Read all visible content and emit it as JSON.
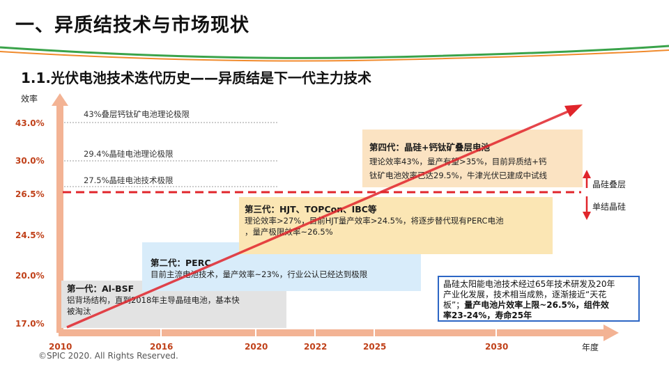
{
  "header": {
    "title": "一、异质结技术与市场现状",
    "subtitle": "1.1.光伏电池技术迭代历史——异质结是下一代主力技术"
  },
  "chart_data": {
    "type": "line",
    "ylabel": "效率",
    "xlabel": "年度",
    "x_ticks": [
      "2010",
      "2016",
      "2020",
      "2022",
      "2025",
      "2030"
    ],
    "y_ticks": [
      "43.0%",
      "30.0%",
      "26.5%",
      "24.5%",
      "20.0%",
      "17.0%"
    ],
    "reference_lines": [
      {
        "label": "43%叠层钙钛矿电池理论极限"
      },
      {
        "label": "29.4%晶硅电池理论极限"
      },
      {
        "label": "27.5%晶硅电池技术极限"
      }
    ],
    "divider": {
      "upper_label": "晶硅叠层",
      "lower_label": "单结晶硅"
    }
  },
  "stages": {
    "gen1": {
      "title": "第一代：Al-BSF",
      "lines": [
        "铝背场结构，直到2018年主导晶硅电池，基本快",
        "被淘汰"
      ]
    },
    "gen2": {
      "title": "第二代：PERC",
      "lines": [
        "目前主流电池技术，量产效率~23%，行业公认已经达到极限"
      ]
    },
    "gen3": {
      "title": "第三代：HJT、TOPCon、IBC等",
      "lines": [
        "理论效率>27%，目前HJT量产效率>24.5%，将逐步替代现有PERC电池",
        "，量产极限效率~26.5%"
      ]
    },
    "gen4": {
      "title": "第四代：晶硅+钙钛矿叠层电池",
      "lines": [
        "理论效率43%，量产有望>35%，目前异质结+钙",
        "钛矿电池效率已达29.5%，牛津光伏已建成中试线"
      ]
    }
  },
  "summary": {
    "line1": "晶硅太阳能电池技术经过65年技术研发及20年",
    "line2": "产业化发展，技术相当成熟，逐渐接近“天花",
    "line3_normal": "板”；",
    "line3_bold": "量产电池片效率上限~26.5%，组件效",
    "line4_bold": "率23-24%，寿命25年"
  },
  "footer": {
    "copyright": "©SPIC 2020. All Rights Reserved."
  },
  "colors": {
    "red": "#e0252b",
    "orange_axis": "#f0a37c",
    "tick_label": "#c0411a",
    "wave_green": "#3aa34a",
    "wave_orange": "#f08a2c"
  }
}
